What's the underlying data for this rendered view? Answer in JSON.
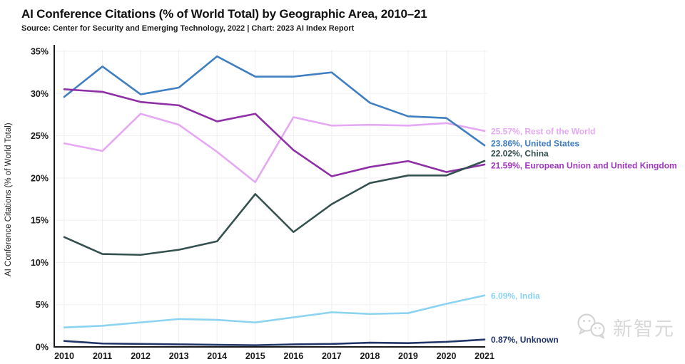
{
  "header": {
    "title": "AI Conference Citations (% of World Total) by Geographic Area, 2010–21",
    "subtitle": "Source: Center for Security and Emerging Technology, 2022 | Chart: 2023 AI Index Report"
  },
  "chart_data": {
    "type": "line",
    "title": "AI Conference Citations (% of World Total) by Geographic Area, 2010–21",
    "xlabel": "",
    "ylabel": "AI Conference Citations (% of World Total)",
    "ylim": [
      0,
      35
    ],
    "ytick_step": 5,
    "ytick_suffix": "%",
    "grid": true,
    "legend_position": "right-end-labels",
    "categories": [
      2010,
      2011,
      2012,
      2013,
      2014,
      2015,
      2016,
      2017,
      2018,
      2019,
      2020,
      2021
    ],
    "series": [
      {
        "name": "Rest of the World",
        "label": "25.57%, Rest of the World",
        "color": "#E5A8F2",
        "label_color": "#E5A8F2",
        "label_dy": 0,
        "values": [
          24.1,
          23.2,
          27.6,
          26.3,
          23.1,
          19.5,
          27.2,
          26.2,
          26.3,
          26.2,
          26.5,
          25.57
        ]
      },
      {
        "name": "United States",
        "label": "23.86%, United States",
        "color": "#3E7EC1",
        "label_color": "#3E7EC1",
        "label_dy": -3,
        "values": [
          29.6,
          33.2,
          29.9,
          30.7,
          34.4,
          32.0,
          32.0,
          32.5,
          28.9,
          27.3,
          27.1,
          23.86
        ]
      },
      {
        "name": "European Union and United Kingdom",
        "label": "21.59%, European Union and United Kingdom",
        "color": "#8E2FA6",
        "label_color": "#A237C2",
        "label_dy": 1,
        "values": [
          30.5,
          30.2,
          29.0,
          28.6,
          26.7,
          27.6,
          23.3,
          20.2,
          21.3,
          22.0,
          20.7,
          21.59
        ]
      },
      {
        "name": "China",
        "label": "22.02%, China",
        "color": "#35514F",
        "label_color": "#35514F",
        "label_dy": -11,
        "values": [
          13.0,
          11.0,
          10.9,
          11.5,
          12.5,
          18.1,
          13.6,
          16.9,
          19.4,
          20.3,
          20.3,
          22.02
        ]
      },
      {
        "name": "India",
        "label": "6.09%, India",
        "color": "#8BD3F0",
        "label_color": "#8BD3F0",
        "label_dy": 0,
        "values": [
          2.3,
          2.5,
          2.9,
          3.3,
          3.2,
          2.9,
          3.5,
          4.1,
          3.9,
          4.0,
          5.1,
          6.09
        ]
      },
      {
        "name": "Unknown",
        "label": "0.87%, Unknown",
        "color": "#223568",
        "label_color": "#223568",
        "label_dy": 0,
        "values": [
          0.7,
          0.4,
          0.35,
          0.3,
          0.25,
          0.2,
          0.3,
          0.35,
          0.5,
          0.45,
          0.6,
          0.87
        ]
      }
    ]
  },
  "watermark": {
    "text": "新智元",
    "icon": "wechat-icon"
  }
}
